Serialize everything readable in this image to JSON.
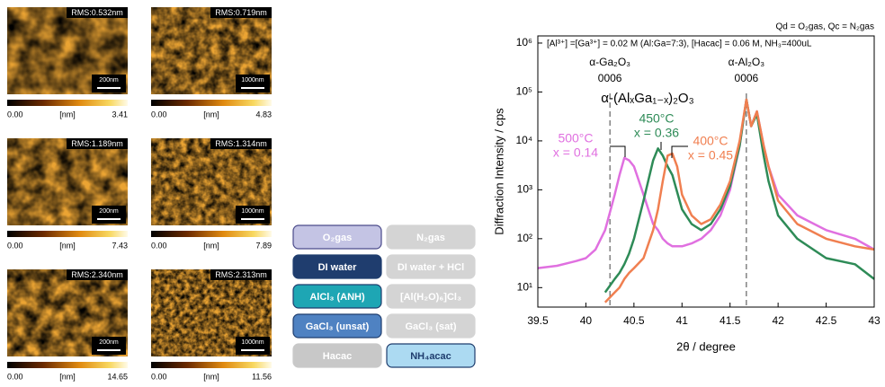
{
  "afm_panels": [
    {
      "rms": "RMS:0.532nm",
      "scale_bar": "200nm",
      "cb_min": "0.00",
      "cb_unit": "[nm]",
      "cb_max": "3.41"
    },
    {
      "rms": "RMS:0.719nm",
      "scale_bar": "1000nm",
      "cb_min": "0.00",
      "cb_unit": "[nm]",
      "cb_max": "4.83"
    },
    {
      "rms": "RMS:1.189nm",
      "scale_bar": "200nm",
      "cb_min": "0.00",
      "cb_unit": "[nm]",
      "cb_max": "7.43"
    },
    {
      "rms": "RMS:1.314nm",
      "scale_bar": "1000nm",
      "cb_min": "0.00",
      "cb_unit": "[nm]",
      "cb_max": "7.89"
    },
    {
      "rms": "RMS:2.340nm",
      "scale_bar": "200nm",
      "cb_min": "0.00",
      "cb_unit": "[nm]",
      "cb_max": "14.65"
    },
    {
      "rms": "RMS:2.313nm",
      "scale_bar": "1000nm",
      "cb_min": "0.00",
      "cb_unit": "[nm]",
      "cb_max": "11.56"
    }
  ],
  "buttons": [
    {
      "label": "O₂gas",
      "color": "#c4c4e4",
      "text_color": "#ffffff",
      "border": "#4a4a8a"
    },
    {
      "label": "N₂gas",
      "color": "#d4d4d4",
      "text_color": "#ffffff",
      "border": "#d4d4d4"
    },
    {
      "label": "DI water",
      "color": "#1f3d6e",
      "text_color": "#ffffff",
      "border": "#1f3d6e"
    },
    {
      "label": "DI water + HCl",
      "color": "#d4d4d4",
      "text_color": "#ffffff",
      "border": "#d4d4d4"
    },
    {
      "label": "AlCl₃ (ANH)",
      "color": "#1ea6b4",
      "text_color": "#ffffff",
      "border": "#1f3d6e"
    },
    {
      "label": "[Al(H₂O)₆]Cl₃",
      "color": "#d4d4d4",
      "text_color": "#ffffff",
      "border": "#d4d4d4"
    },
    {
      "label": "GaCl₃ (unsat)",
      "color": "#4f82c2",
      "text_color": "#ffffff",
      "border": "#1f3d6e"
    },
    {
      "label": "GaCl₃ (sat)",
      "color": "#d4d4d4",
      "text_color": "#ffffff",
      "border": "#d4d4d4"
    },
    {
      "label": "Hacac",
      "color": "#c8c8c8",
      "text_color": "#ffffff",
      "border": "#c8c8c8"
    },
    {
      "label": "NH₄acac",
      "color": "#acdaf2",
      "text_color": "#1f3d6e",
      "border": "#1f3d6e"
    }
  ],
  "chart_data": {
    "type": "line",
    "log_y": true,
    "header": "Qd = O₂gas, Qc = N₂gas",
    "subtitle": "[Al³⁺] =[Ga³⁺] = 0.02 M (Al:Ga=7:3), [Hacac] = 0.06 M, NH₃=400uL",
    "compound": "α-(AlₓGa₁₋ₓ)₂O₃",
    "x_label": "2θ / degree",
    "y_label": "Diffraction Intensity / cps",
    "xlim": [
      39.5,
      43
    ],
    "ylim": [
      4,
      1400000
    ],
    "xticks": [
      39.5,
      40,
      40.5,
      41,
      41.5,
      42,
      42.5,
      43
    ],
    "yticks": [
      {
        "value": 10,
        "label": "10¹"
      },
      {
        "value": 100,
        "label": "10²"
      },
      {
        "value": 1000,
        "label": "10³"
      },
      {
        "value": 10000,
        "label": "10⁴"
      },
      {
        "value": 100000,
        "label": "10⁵"
      },
      {
        "value": 1000000,
        "label": "10⁶"
      }
    ],
    "reference_lines": [
      {
        "x": 40.25,
        "label": "α-Ga₂O₃",
        "plane": "0006"
      },
      {
        "x": 41.67,
        "label": "α-Al₂O₃",
        "plane": "0006"
      }
    ],
    "x": [
      39.5,
      39.7,
      39.9,
      40.0,
      40.1,
      40.2,
      40.3,
      40.35,
      40.4,
      40.45,
      40.5,
      40.6,
      40.7,
      40.75,
      40.8,
      40.85,
      40.9,
      40.95,
      41.0,
      41.1,
      41.2,
      41.3,
      41.4,
      41.5,
      41.6,
      41.67,
      41.72,
      41.78,
      41.85,
      41.9,
      42.0,
      42.2,
      42.5,
      42.8,
      43.0
    ],
    "series": [
      {
        "name": "500°C",
        "composition": "x = 0.14",
        "color": "#e070e0",
        "values": [
          25,
          28,
          35,
          40,
          60,
          150,
          800,
          2000,
          4500,
          4000,
          3000,
          800,
          200,
          150,
          100,
          80,
          70,
          70,
          70,
          80,
          100,
          150,
          300,
          1000,
          8000,
          70000,
          20000,
          40000,
          8000,
          3000,
          800,
          300,
          150,
          100,
          60
        ]
      },
      {
        "name": "450°C",
        "composition": "x = 0.36",
        "color": "#2e8b57",
        "values": [
          null,
          null,
          null,
          null,
          null,
          8,
          15,
          20,
          30,
          50,
          100,
          600,
          4000,
          7000,
          5000,
          3000,
          2000,
          900,
          400,
          200,
          150,
          200,
          400,
          1200,
          8000,
          70000,
          20000,
          35000,
          5000,
          1500,
          300,
          100,
          40,
          30,
          15
        ]
      },
      {
        "name": "400°C",
        "composition": "x = 0.45",
        "color": "#f07f50",
        "values": [
          null,
          null,
          null,
          null,
          null,
          5,
          8,
          10,
          15,
          20,
          25,
          40,
          150,
          400,
          1500,
          5000,
          5500,
          3000,
          800,
          300,
          200,
          250,
          500,
          1500,
          10000,
          70000,
          20000,
          40000,
          8000,
          3000,
          600,
          200,
          100,
          70,
          60
        ]
      }
    ]
  }
}
